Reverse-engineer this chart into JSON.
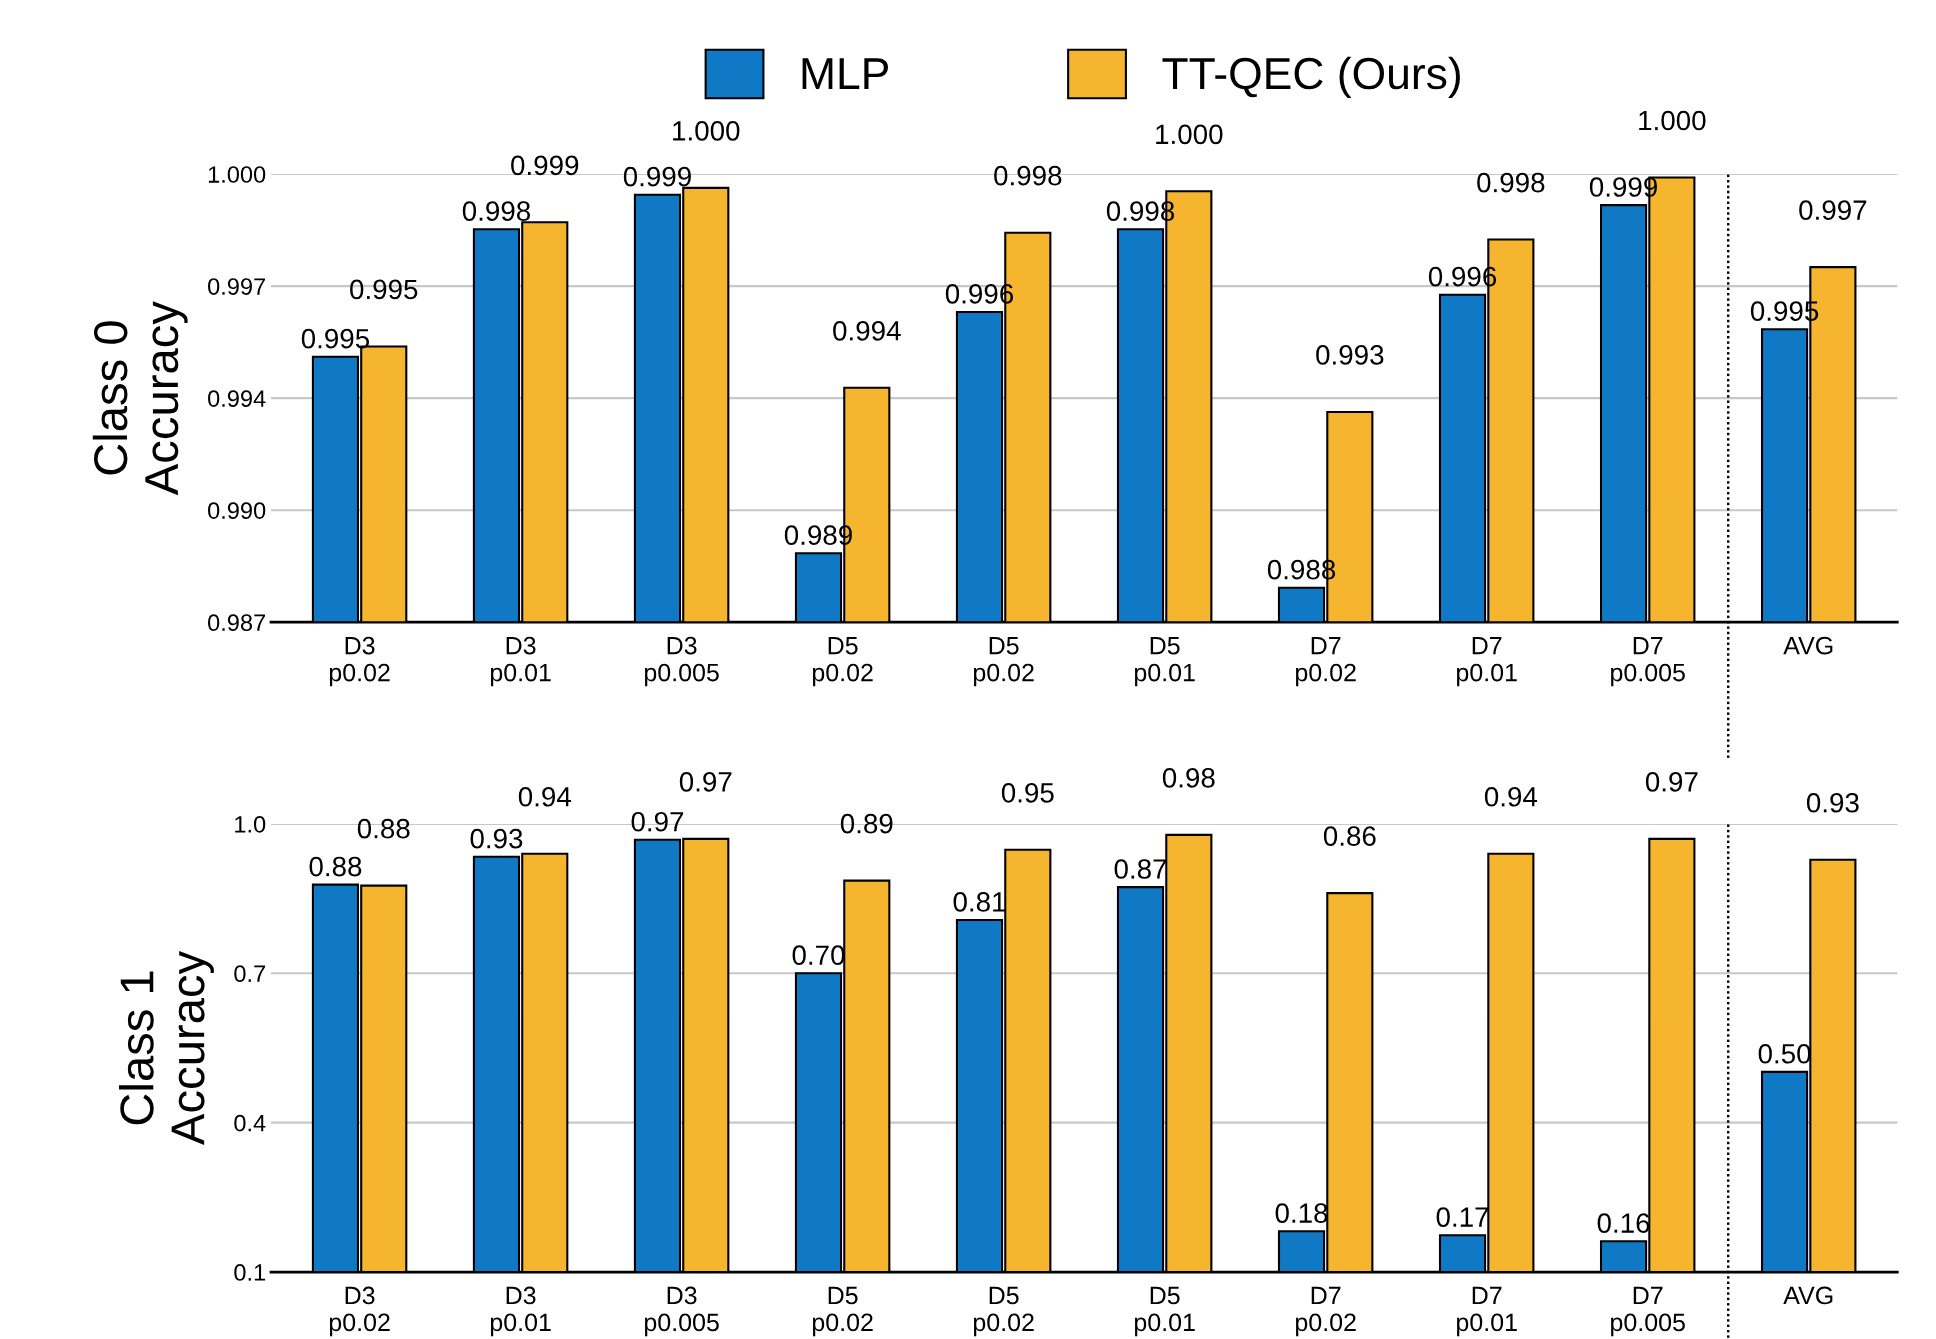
{
  "chart_data": [
    {
      "type": "bar",
      "ylabel": "Class 0\nAccuracy",
      "categories": [
        "D3\np0.02",
        "D3\np0.01",
        "D3\np0.005",
        "D5\np0.02",
        "D5\np0.02",
        "D5\np0.01",
        "D7\np0.02",
        "D7\np0.01",
        "D7\np0.005",
        "AVG"
      ],
      "series": [
        {
          "name": "MLP",
          "color": "#0f79c6",
          "values": [
            0.9947,
            0.9984,
            0.9994,
            0.989,
            0.996,
            0.9984,
            0.988,
            0.9965,
            0.9991,
            0.9955
          ],
          "value_labels": [
            "0.995",
            "0.998",
            "0.999",
            "0.989",
            "0.996",
            "0.998",
            "0.988",
            "0.996",
            "0.999",
            "0.995"
          ]
        },
        {
          "name": "TT-QEC (Ours)",
          "color": "#f5b52e",
          "values": [
            0.995,
            0.9986,
            0.9996,
            0.9938,
            0.9983,
            0.9995,
            0.9931,
            0.9981,
            0.9999,
            0.9973
          ],
          "value_labels": [
            "0.995",
            "0.999",
            "1.000",
            "0.994",
            "0.998",
            "1.000",
            "0.993",
            "0.998",
            "1.000",
            "0.997"
          ]
        }
      ],
      "ylim": [
        0.987,
        1.0
      ],
      "yticks": [
        0.987,
        {
          "value": 0.99025,
          "label": "0.990"
        },
        {
          "value": 0.9935,
          "label": "0.994"
        },
        {
          "value": 0.99675,
          "label": "0.997"
        },
        {
          "value": 1.0,
          "label": "1.000"
        }
      ],
      "grid": "y",
      "legend": "top"
    },
    {
      "type": "bar",
      "ylabel": "Class 1\nAccuracy",
      "categories": [
        "D3\np0.02",
        "D3\np0.01",
        "D3\np0.005",
        "D5\np0.02",
        "D5\np0.02",
        "D5\np0.01",
        "D7\np0.02",
        "D7\np0.01",
        "D7\np0.005",
        "AVG"
      ],
      "series": [
        {
          "color": "#0f79c6",
          "values": [
            0.878,
            0.934,
            0.968,
            0.7,
            0.807,
            0.873,
            0.182,
            0.174,
            0.162,
            0.502
          ],
          "value_labels": [
            "0.88",
            "0.93",
            "0.97",
            "0.70",
            "0.81",
            "0.87",
            "0.18",
            "0.17",
            "0.16",
            "0.50"
          ]
        },
        {
          "color": "#f5b52e",
          "values": [
            0.876,
            0.94,
            0.97,
            0.886,
            0.948,
            0.978,
            0.861,
            0.94,
            0.97,
            0.928
          ],
          "value_labels": [
            "0.88",
            "0.94",
            "0.97",
            "0.89",
            "0.95",
            "0.98",
            "0.86",
            "0.94",
            "0.97",
            "0.93"
          ]
        }
      ],
      "ylim": [
        0.1,
        1.0
      ],
      "yticks": [
        0.1,
        0.4,
        0.7,
        {
          "value": 1.0,
          "label": "1.0"
        }
      ],
      "grid": "y"
    }
  ]
}
